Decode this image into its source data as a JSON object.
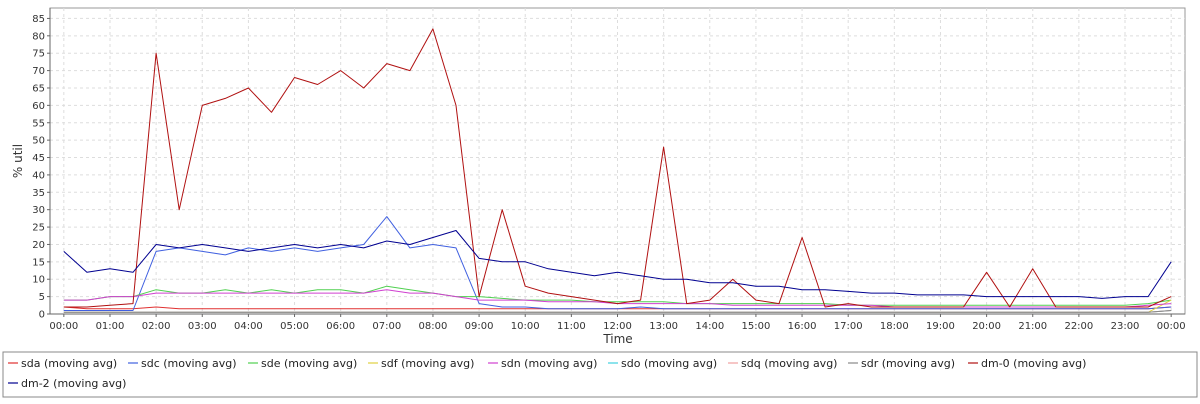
{
  "chart_data": {
    "type": "line",
    "title": "",
    "xlabel": "Time",
    "ylabel": "% util",
    "x_ticks": [
      "00:00",
      "01:00",
      "02:00",
      "03:00",
      "04:00",
      "05:00",
      "06:00",
      "07:00",
      "08:00",
      "09:00",
      "10:00",
      "11:00",
      "12:00",
      "13:00",
      "14:00",
      "15:00",
      "16:00",
      "17:00",
      "18:00",
      "19:00",
      "20:00",
      "21:00",
      "22:00",
      "23:00",
      "00:00"
    ],
    "y_ticks": [
      0,
      5,
      10,
      15,
      20,
      25,
      30,
      35,
      40,
      45,
      50,
      55,
      60,
      65,
      70,
      75,
      80,
      85
    ],
    "xlim_hours": [
      -0.3,
      24.3
    ],
    "ylim": [
      0,
      88
    ],
    "grid": true,
    "legend_position": "bottom",
    "x_hours": [
      0,
      0.5,
      1,
      1.5,
      2,
      2.5,
      3,
      3.5,
      4,
      4.5,
      5,
      5.5,
      6,
      6.5,
      7,
      7.5,
      8,
      8.5,
      9,
      9.5,
      10,
      10.5,
      11,
      11.5,
      12,
      12.5,
      13,
      13.5,
      14,
      14.5,
      15,
      15.5,
      16,
      16.5,
      17,
      17.5,
      18,
      18.5,
      19,
      19.5,
      20,
      20.5,
      21,
      21.5,
      22,
      22.5,
      23,
      23.5,
      24
    ],
    "series": [
      {
        "name": "sda (moving avg)",
        "color": "#e03030",
        "values": [
          2,
          1.5,
          1.5,
          1.5,
          2,
          1.5,
          1.5,
          1.5,
          1.5,
          1.5,
          1.5,
          1.5,
          1.5,
          1.5,
          1.5,
          1.5,
          1.5,
          1.5,
          1.5,
          1.5,
          1.5,
          1.5,
          1.5,
          1.5,
          1.5,
          1.5,
          1.5,
          1.5,
          1.5,
          1.5,
          1.5,
          1.5,
          1.5,
          1.5,
          1.5,
          1.5,
          1.5,
          1.5,
          1.5,
          1.5,
          1.5,
          1.5,
          1.5,
          1.5,
          1.5,
          1.5,
          1.5,
          1.5,
          2
        ]
      },
      {
        "name": "sdc (moving avg)",
        "color": "#4060e0",
        "values": [
          1,
          1,
          1,
          1,
          18,
          19,
          18,
          17,
          19,
          18,
          19,
          18,
          19,
          20,
          28,
          19,
          20,
          19,
          3,
          2,
          2,
          1.5,
          1.5,
          1.5,
          1.5,
          2,
          1.5,
          1.5,
          1.5,
          1.5,
          1.5,
          1.5,
          1.5,
          1.5,
          1.5,
          1.5,
          1.5,
          1.5,
          1.5,
          1.5,
          1.5,
          1.5,
          1.5,
          1.5,
          1.5,
          1.5,
          1.5,
          1.5,
          2
        ]
      },
      {
        "name": "sde (moving avg)",
        "color": "#50d050",
        "values": [
          4,
          4,
          5,
          5,
          7,
          6,
          6,
          7,
          6,
          7,
          6,
          7,
          7,
          6,
          8,
          7,
          6,
          5,
          5,
          4.5,
          4,
          4,
          4,
          3.5,
          3.5,
          3.5,
          3.5,
          3,
          3,
          3,
          3,
          3,
          3,
          3,
          2.5,
          2.5,
          2.5,
          2.5,
          2.5,
          2.5,
          2.5,
          2.5,
          2.5,
          2.5,
          2.5,
          2.5,
          2.5,
          3,
          4
        ]
      },
      {
        "name": "sdf (moving avg)",
        "color": "#e0d040",
        "values": [
          0.5,
          0.5,
          0.5,
          0.5,
          0.5,
          0.5,
          0.5,
          0.5,
          0.5,
          0.5,
          0.5,
          0.5,
          0.5,
          0.5,
          0.5,
          0.5,
          0.5,
          0.5,
          0.5,
          0.5,
          0.5,
          0.5,
          0.5,
          0.5,
          0.5,
          0.5,
          0.5,
          0.5,
          0.5,
          0.5,
          0.5,
          0.5,
          0.5,
          0.5,
          0.5,
          0.5,
          0.5,
          0.5,
          0.5,
          0.5,
          0.5,
          0.5,
          0.5,
          0.5,
          0.5,
          0.5,
          0.5,
          0.5,
          4
        ]
      },
      {
        "name": "sdn (moving avg)",
        "color": "#d040d0",
        "values": [
          4,
          4,
          5,
          5,
          6,
          6,
          6,
          6,
          6,
          6,
          6,
          6,
          6,
          6,
          7,
          6,
          6,
          5,
          4,
          4,
          4,
          3.5,
          3.5,
          3.5,
          3,
          3,
          3,
          3,
          3,
          2.5,
          2.5,
          2.5,
          2.5,
          2.5,
          2.5,
          2.5,
          2,
          2,
          2,
          2,
          2,
          2,
          2,
          2,
          2,
          2,
          2,
          2.5,
          3
        ]
      },
      {
        "name": "sdo (moving avg)",
        "color": "#40d0e0",
        "values": [
          0.5,
          0.5,
          0.5,
          0.5,
          0.5,
          0.5,
          0.5,
          0.5,
          0.5,
          0.5,
          0.5,
          0.5,
          0.5,
          0.5,
          0.5,
          0.5,
          0.5,
          0.5,
          0.5,
          0.5,
          0.5,
          0.5,
          0.5,
          0.5,
          0.5,
          0.5,
          0.5,
          0.5,
          0.5,
          0.5,
          0.5,
          0.5,
          0.5,
          0.5,
          0.5,
          0.5,
          0.5,
          0.5,
          0.5,
          0.5,
          0.5,
          0.5,
          0.5,
          0.5,
          0.5,
          0.5,
          0.5,
          0.5,
          1
        ]
      },
      {
        "name": "sdq (moving avg)",
        "color": "#f0a0a0",
        "values": [
          0.5,
          0.5,
          0.5,
          0.5,
          0.5,
          0.5,
          0.5,
          0.5,
          0.5,
          0.5,
          0.5,
          0.5,
          0.5,
          0.5,
          0.5,
          0.5,
          0.5,
          0.5,
          0.5,
          0.5,
          0.5,
          0.5,
          0.5,
          0.5,
          0.5,
          0.5,
          0.5,
          0.5,
          0.5,
          0.5,
          0.5,
          0.5,
          0.5,
          0.5,
          0.5,
          0.5,
          0.5,
          0.5,
          0.5,
          0.5,
          0.5,
          0.5,
          0.5,
          0.5,
          0.5,
          0.5,
          0.5,
          0.5,
          1
        ]
      },
      {
        "name": "sdr (moving avg)",
        "color": "#888888",
        "values": [
          0.5,
          0.5,
          0.5,
          0.5,
          0.5,
          0.5,
          0.5,
          0.5,
          0.5,
          0.5,
          0.5,
          0.5,
          0.5,
          0.5,
          0.5,
          0.5,
          0.5,
          0.5,
          0.5,
          0.5,
          0.5,
          0.5,
          0.5,
          0.5,
          0.5,
          0.5,
          0.5,
          0.5,
          0.5,
          0.5,
          0.5,
          0.5,
          0.5,
          0.5,
          0.5,
          0.5,
          0.5,
          0.5,
          0.5,
          0.5,
          0.5,
          0.5,
          0.5,
          0.5,
          0.5,
          0.5,
          0.5,
          0.5,
          1
        ]
      },
      {
        "name": "dm-0 (moving avg)",
        "color": "#b01010",
        "values": [
          2,
          2,
          2.5,
          3,
          75,
          30,
          60,
          62,
          65,
          58,
          68,
          66,
          70,
          65,
          72,
          70,
          82,
          60,
          5,
          30,
          8,
          6,
          5,
          4,
          3,
          4,
          48,
          3,
          4,
          10,
          4,
          3,
          22,
          2,
          3,
          2,
          2,
          2,
          2,
          2,
          12,
          2,
          13,
          2,
          2,
          2,
          2,
          2,
          5
        ]
      },
      {
        "name": "dm-2 (moving avg)",
        "color": "#000090",
        "values": [
          18,
          12,
          13,
          12,
          20,
          19,
          20,
          19,
          18,
          19,
          20,
          19,
          20,
          19,
          21,
          20,
          22,
          24,
          16,
          15,
          15,
          13,
          12,
          11,
          12,
          11,
          10,
          10,
          9,
          9,
          8,
          8,
          7,
          7,
          6.5,
          6,
          6,
          5.5,
          5.5,
          5.5,
          5,
          5,
          5,
          5,
          5,
          4.5,
          5,
          5,
          15
        ]
      }
    ]
  }
}
